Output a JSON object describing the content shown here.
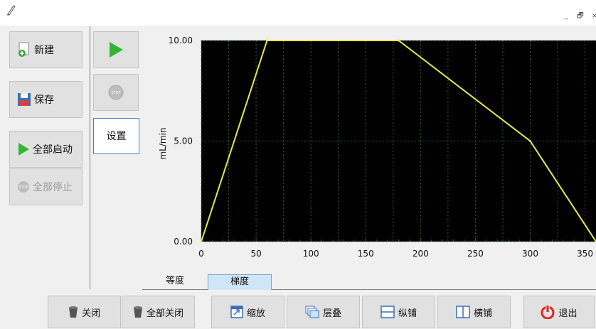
{
  "window": {
    "controls": [
      "_",
      "🗗",
      "×"
    ]
  },
  "left_panel": {
    "new_label": "新建",
    "save_label": "保存",
    "start_all_label": "全部启动",
    "stop_all_label": "全部停止"
  },
  "controls": {
    "settings_label": "设置"
  },
  "tabs": [
    {
      "label": "等度"
    },
    {
      "label": "梯度",
      "active": true
    }
  ],
  "toolbar": {
    "close_label": "关闭",
    "close_all_label": "全部关闭",
    "zoom_label": "缩放",
    "cascade_label": "层叠",
    "tile_vertical_label": "纵铺",
    "tile_horizontal_label": "横铺",
    "exit_label": "退出"
  },
  "colors": {
    "plot_bg": "#000000",
    "line": "#e8e84a",
    "grid": "#1f6b1f",
    "exit_icon": "#e0261b",
    "play": "#35b535"
  },
  "chart_data": {
    "type": "line",
    "ylabel": "mL/min",
    "xlabel": "",
    "xlim": [
      0,
      360
    ],
    "ylim": [
      0,
      10
    ],
    "x_ticks": [
      "0",
      "50",
      "100",
      "150",
      "200",
      "250",
      "300",
      "350"
    ],
    "y_ticks": [
      "0.00",
      "5.00",
      "10.00"
    ],
    "grid": true,
    "series": [
      {
        "x": [
          0,
          60,
          180,
          300,
          360
        ],
        "y": [
          0,
          10,
          10,
          5,
          0
        ]
      }
    ]
  }
}
